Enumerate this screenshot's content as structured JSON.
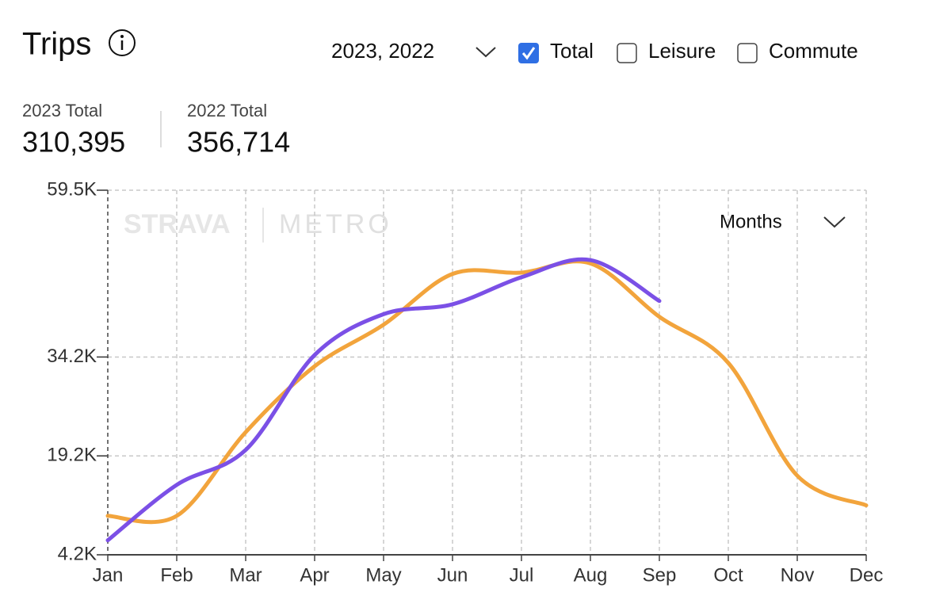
{
  "header": {
    "title": "Trips",
    "year_select": "2023, 2022",
    "filters": [
      {
        "label": "Total",
        "checked": true
      },
      {
        "label": "Leisure",
        "checked": false
      },
      {
        "label": "Commute",
        "checked": false
      }
    ]
  },
  "stats": [
    {
      "label": "2023 Total",
      "value": "310,395"
    },
    {
      "label": "2022 Total",
      "value": "356,714"
    }
  ],
  "period_select": "Months",
  "watermark": [
    "STRAVA",
    "METRO"
  ],
  "chart_data": {
    "type": "line",
    "categories": [
      "Jan",
      "Feb",
      "Mar",
      "Apr",
      "May",
      "Jun",
      "Jul",
      "Aug",
      "Sep",
      "Oct",
      "Nov",
      "Dec"
    ],
    "series": [
      {
        "color": "#f2a43c",
        "values": [
          10100,
          10100,
          22800,
          32800,
          39100,
          46800,
          47000,
          48400,
          40300,
          33300,
          16200,
          11700
        ]
      },
      {
        "color": "#7b50e6",
        "values": [
          6400,
          14800,
          20100,
          34500,
          40700,
          42200,
          46300,
          48900,
          42700,
          null,
          null,
          null
        ]
      }
    ],
    "ylim": [
      4200,
      59500
    ],
    "yticks": [
      {
        "value": 4200,
        "label": "4.2K"
      },
      {
        "value": 19200,
        "label": "19.2K"
      },
      {
        "value": 34200,
        "label": "34.2K"
      },
      {
        "value": 59500,
        "label": "59.5K"
      }
    ],
    "grid": true
  }
}
